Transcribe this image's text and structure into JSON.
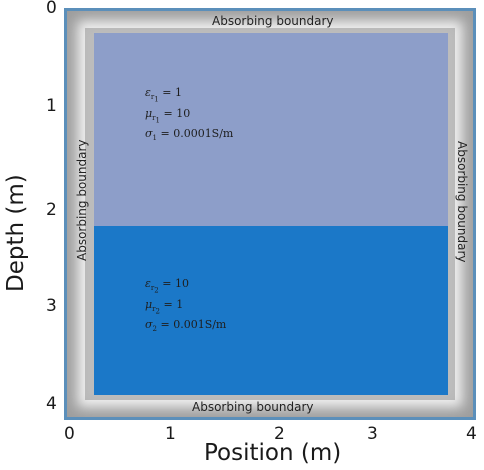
{
  "axes": {
    "y_label": "Depth (m)",
    "x_label": "Position (m)",
    "y_ticks": [
      "0",
      "1",
      "2",
      "3",
      "4"
    ],
    "x_ticks": [
      "0",
      "1",
      "2",
      "3",
      "4"
    ]
  },
  "boundaries": {
    "top": "Absorbing boundary",
    "bottom": "Absorbing boundary",
    "left": "Absorbing boundary",
    "right": "Absorbing boundary"
  },
  "layers": [
    {
      "color": "#8d9ec9",
      "epsilon": "= 1",
      "mu": "= 10",
      "sigma": "= 0.0001S/m"
    },
    {
      "color": "#1b78c8",
      "epsilon": "= 10",
      "mu": "= 1",
      "sigma": "= 0.001S/m"
    }
  ]
}
